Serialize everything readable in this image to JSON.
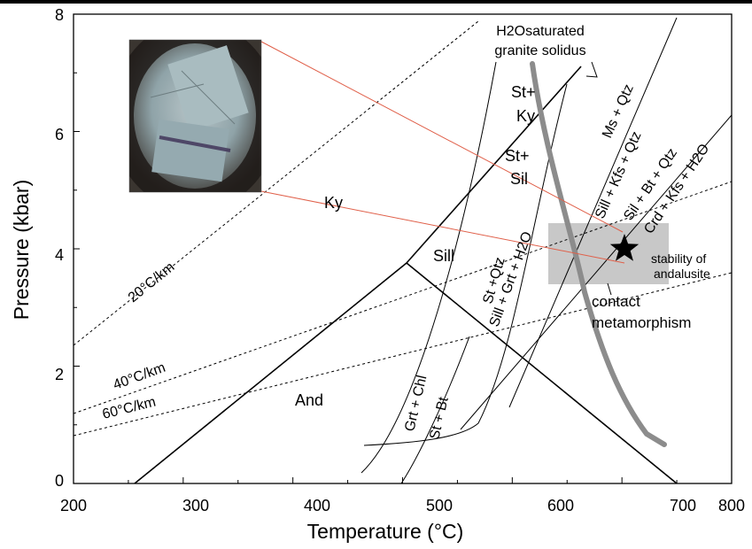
{
  "axes": {
    "x_label_prefix": "Temperature  (",
    "x_label_unit": "°C",
    "x_label_suffix": ")",
    "y_label": "Pressure (kbar)",
    "x_ticks": [
      "200",
      "300",
      "400",
      "500",
      "600",
      "700",
      "800"
    ],
    "y_ticks": [
      "0",
      "2",
      "4",
      "6",
      "8"
    ]
  },
  "phase_fields": {
    "kyanite": "Ky",
    "sillimanite": "Sill",
    "andalusite": "And",
    "st_ky": [
      "St+",
      "Ky"
    ],
    "st_sil": [
      "St+",
      "Sil"
    ]
  },
  "solidus_label": [
    "H2Osaturated",
    "granite solidus"
  ],
  "reactions": {
    "grt_chl": "Grt + Chl",
    "st_bt": "St + Bt",
    "st_qtz": "St +Qtz",
    "sill_grt_h2o": "Sill + Grt + H2O",
    "ms_qtz": "Ms + Qtz",
    "sill_kfs_qtz": "Sill + Kfs + Qtz",
    "sil_bt_qtz": "Sil + Bt + Qtz",
    "crd_kfs_h2o": "Crd + Kfs + H2O"
  },
  "geotherms": {
    "g20": "20°C/km",
    "g40": "40°C/km",
    "g60": "60°C/km"
  },
  "annotations": {
    "stability": [
      "stability of",
      "andalusite"
    ],
    "contact": [
      "contact",
      "metamorphism"
    ]
  },
  "colors": {
    "solidus": "#8c8c8c",
    "contact_box": "#c8c8c8",
    "callout": "#e0604a",
    "star": "#000000"
  }
}
